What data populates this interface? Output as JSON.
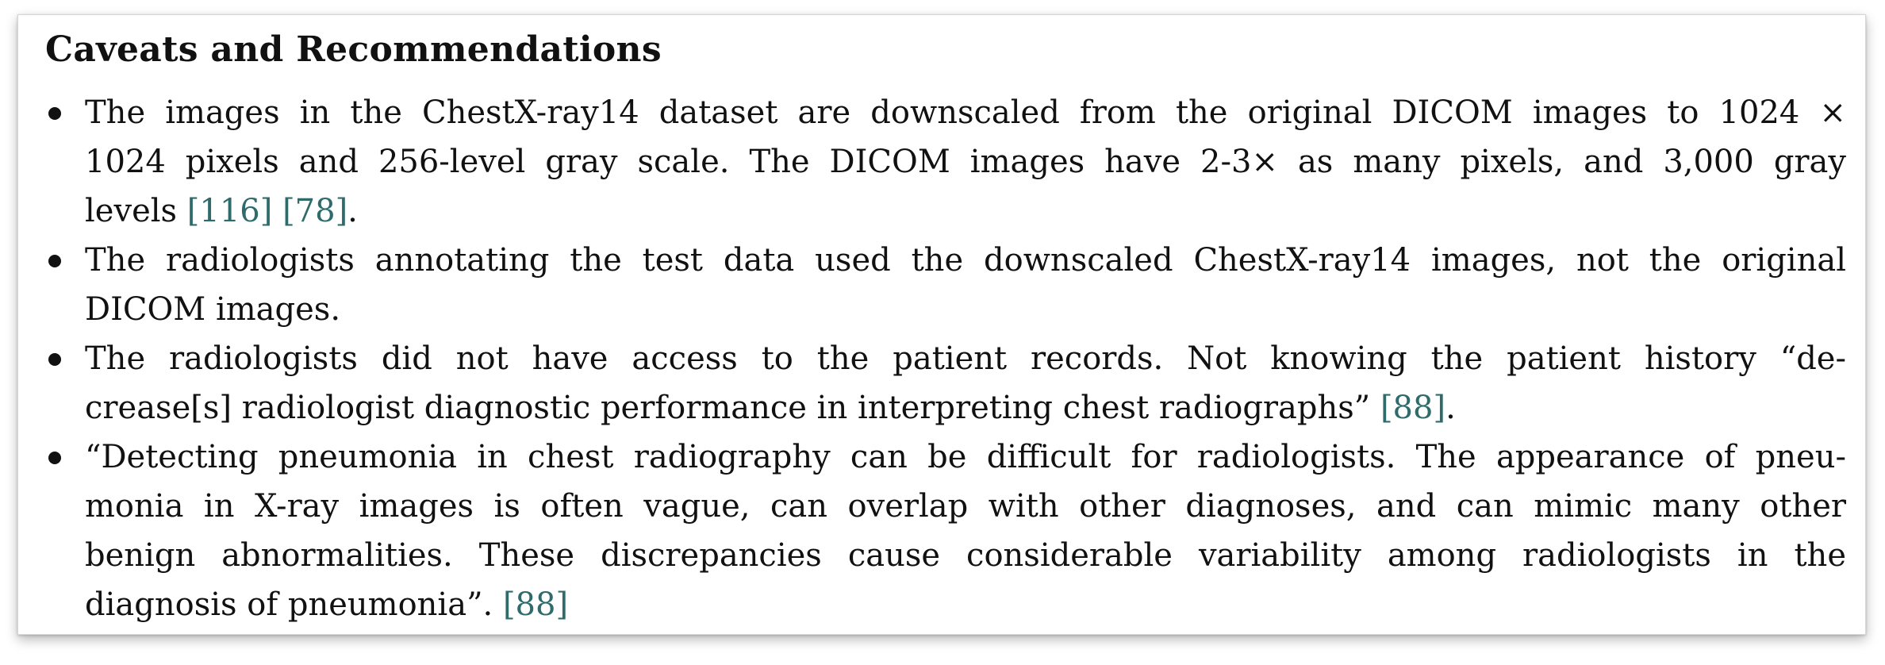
{
  "section": {
    "heading": "Caveats and Recommendations"
  },
  "items": [
    {
      "lines": [
        "The images in the ChestX-ray14 dataset are downscaled from the original DICOM images to 1024 ×",
        "1024 pixels and 256-level gray scale. The DICOM images have 2-3× as many pixels, and 3,000 gray"
      ],
      "last_text": "levels ",
      "citations": [
        "[116]",
        "[78]"
      ],
      "tail": "."
    },
    {
      "lines": [
        "The radiologists annotating the test data used the downscaled ChestX-ray14 images, not the original"
      ],
      "last_text": "DICOM images.",
      "citations": [],
      "tail": ""
    },
    {
      "lines": [
        "The radiologists did not have access to the patient records. Not knowing the patient history “de-"
      ],
      "last_text": "crease[s] radiologist diagnostic performance in interpreting chest radiographs” ",
      "citations": [
        "[88]"
      ],
      "tail": "."
    },
    {
      "lines": [
        "“Detecting pneumonia in chest radiography can be difficult for radiologists. The appearance of pneu-",
        "monia in X-ray images is often vague, can overlap with other diagnoses, and can mimic many other",
        "benign abnormalities. These discrepancies cause considerable variability among radiologists in the"
      ],
      "last_text": "diagnosis of pneumonia”. ",
      "citations": [
        "[88]"
      ],
      "tail": ""
    }
  ],
  "colors": {
    "text": "#111111",
    "citation": "#2f6b6b"
  }
}
